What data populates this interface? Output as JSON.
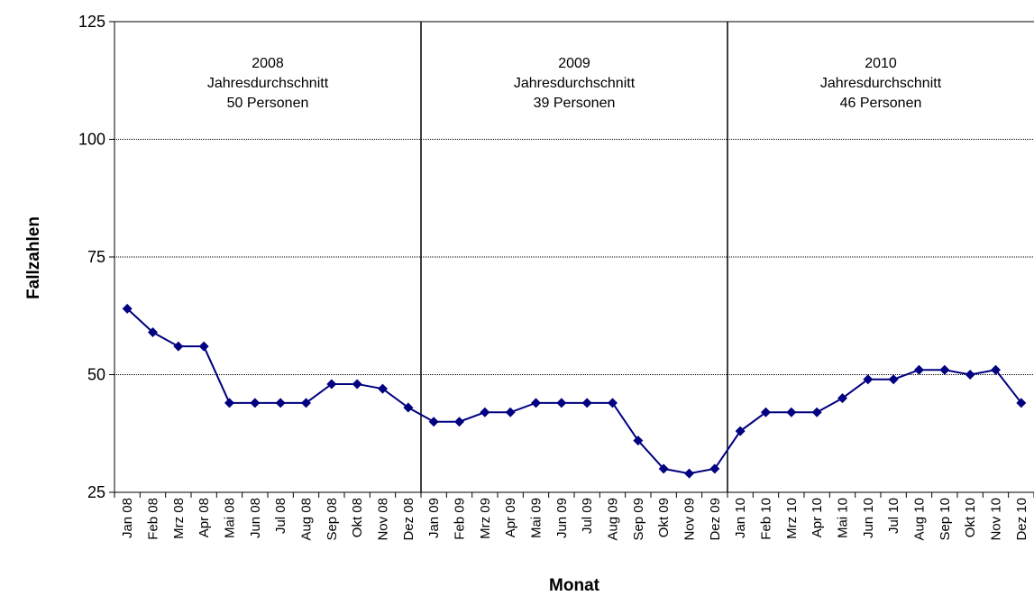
{
  "chart_data": {
    "type": "line",
    "xlabel": "Monat",
    "ylabel": "Fallzahlen",
    "ylim": [
      25,
      125
    ],
    "yticks": [
      25,
      50,
      75,
      100,
      125
    ],
    "grid": "horizontal dotted",
    "line_color": "#000080",
    "marker": "diamond",
    "categories": [
      "Jan 08",
      "Feb 08",
      "Mrz 08",
      "Apr 08",
      "Mai 08",
      "Jun 08",
      "Jul 08",
      "Aug 08",
      "Sep 08",
      "Okt 08",
      "Nov 08",
      "Dez 08",
      "Jan 09",
      "Feb 09",
      "Mrz 09",
      "Apr 09",
      "Mai 09",
      "Jun 09",
      "Jul 09",
      "Aug 09",
      "Sep 09",
      "Okt 09",
      "Nov 09",
      "Dez 09",
      "Jan 10",
      "Feb 10",
      "Mrz 10",
      "Apr 10",
      "Mai 10",
      "Jun 10",
      "Jul 10",
      "Aug 10",
      "Sep 10",
      "Okt 10",
      "Nov 10",
      "Dez 10"
    ],
    "series": [
      {
        "values": [
          64,
          59,
          56,
          56,
          44,
          44,
          44,
          44,
          48,
          48,
          47,
          43,
          40,
          40,
          42,
          42,
          44,
          44,
          44,
          44,
          36,
          30,
          29,
          30,
          38,
          42,
          42,
          42,
          45,
          49,
          49,
          51,
          51,
          50,
          51,
          44
        ]
      }
    ],
    "periods": [
      {
        "year": "2008",
        "label": "Jahresdurchschnitt",
        "average": "50 Personen"
      },
      {
        "year": "2009",
        "label": "Jahresdurchschnitt",
        "average": "39 Personen"
      },
      {
        "year": "2010",
        "label": "Jahresdurchschnitt",
        "average": "46 Personen"
      }
    ]
  }
}
